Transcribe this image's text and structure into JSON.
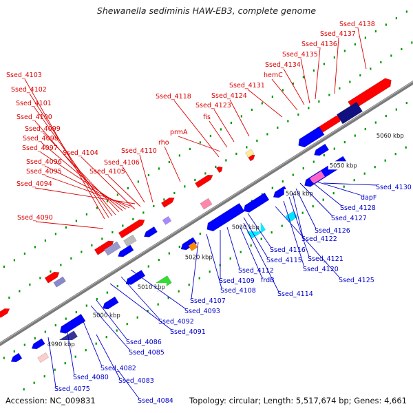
{
  "title": "Shewanella sediminis HAW-EB3, complete genome",
  "footer": {
    "accession": "Accession: NC_009831",
    "summary": "Topology: circular; Length: 5,517,674 bp; Genes: 4,661"
  },
  "colors": {
    "backbone": "#7a7a7a",
    "forward_gene": "#ff0000",
    "reverse_gene": "#0000ff",
    "tick": "#009900",
    "label_top": "#dd0000",
    "label_bottom": "#0000cc"
  },
  "scale_labels": [
    "4990 kbp",
    "5000 kbp",
    "5010 kbp",
    "5020 kbp",
    "5030 kbp",
    "5040 kbp",
    "5050 kbp",
    "5060 kbp"
  ],
  "top_labels": [
    "Ssed_4103",
    "Ssed_4102",
    "Ssed_4101",
    "Ssed_4100",
    "Ssed_4099",
    "Ssed_4098",
    "Ssed_4097",
    "Ssed_4096",
    "Ssed_4095",
    "Ssed_4094",
    "Ssed_4090",
    "Ssed_4104",
    "Ssed_4105",
    "Ssed_4106",
    "Ssed_4110",
    "rho",
    "prmA",
    "Ssed_4118",
    "fis",
    "Ssed_4123",
    "Ssed_4124",
    "Ssed_4131",
    "hemC",
    "Ssed_4134",
    "Ssed_4135",
    "Ssed_4136",
    "Ssed_4137",
    "Ssed_4138"
  ],
  "bottom_labels": [
    "Ssed_4130",
    "dapF",
    "Ssed_4128",
    "Ssed_4127",
    "Ssed_4126",
    "Ssed_4122",
    "Ssed_4121",
    "Ssed_4120",
    "Ssed_4125",
    "Ssed_4116",
    "Ssed_4115",
    "Ssed_4114",
    "frdB",
    "Ssed_4112",
    "Ssed_4109",
    "Ssed_4108",
    "Ssed_4107",
    "Ssed_4093",
    "Ssed_4092",
    "Ssed_4091",
    "Ssed_4086",
    "Ssed_4085",
    "Ssed_4082",
    "Ssed_4083",
    "Ssed_4080",
    "Ssed_4075",
    "Ssed_4084"
  ]
}
